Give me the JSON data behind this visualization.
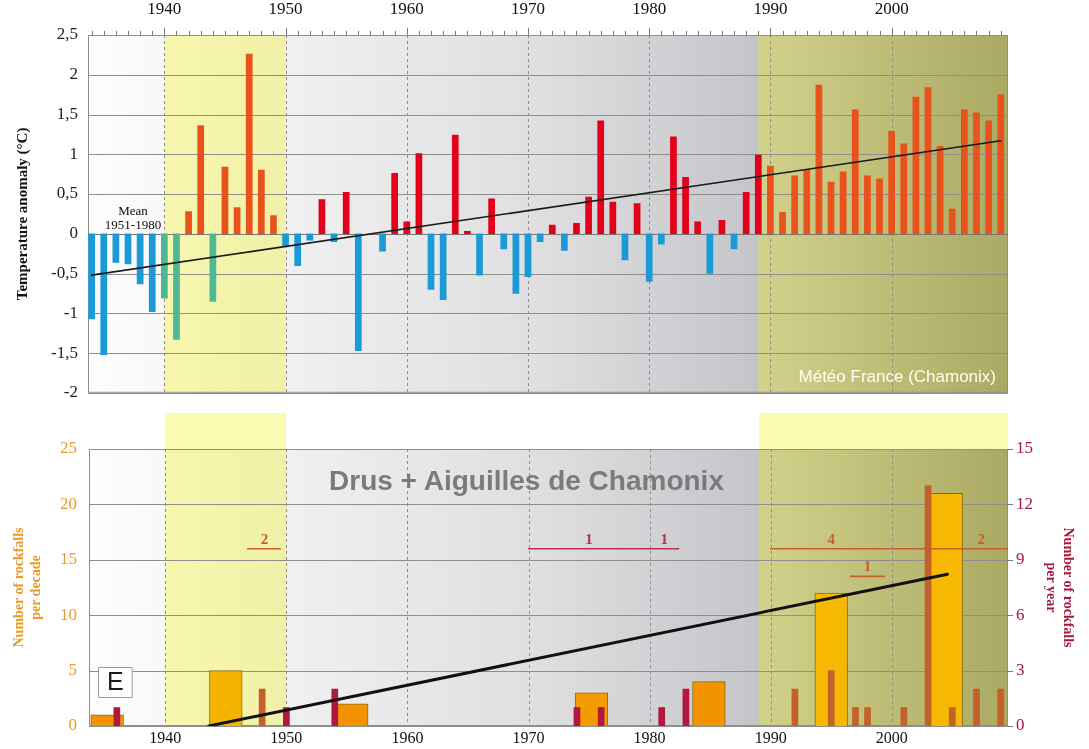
{
  "chart_data": [
    {
      "type": "bar",
      "ylabel": "Temperature anomaly (°C)",
      "x": [
        1934,
        1935,
        1936,
        1937,
        1938,
        1939,
        1940,
        1941,
        1942,
        1943,
        1944,
        1945,
        1946,
        1947,
        1948,
        1949,
        1950,
        1951,
        1952,
        1953,
        1954,
        1955,
        1956,
        1957,
        1958,
        1959,
        1960,
        1961,
        1962,
        1963,
        1964,
        1965,
        1966,
        1967,
        1968,
        1969,
        1970,
        1971,
        1972,
        1973,
        1974,
        1975,
        1976,
        1977,
        1978,
        1979,
        1980,
        1981,
        1982,
        1983,
        1984,
        1985,
        1986,
        1987,
        1988,
        1989,
        1990,
        1991,
        1992,
        1993,
        1994,
        1995,
        1996,
        1997,
        1998,
        1999,
        2000,
        2001,
        2002,
        2003,
        2004,
        2005,
        2006,
        2007,
        2008,
        2009
      ],
      "xlim": [
        1933.7,
        2009.6
      ],
      "xticks": [
        {
          "value": 1934,
          "label": null
        },
        {
          "value": 1935,
          "label": null
        },
        {
          "value": 1936,
          "label": null
        },
        {
          "value": 1937,
          "label": null
        },
        {
          "value": 1938,
          "label": null
        },
        {
          "value": 1939,
          "label": null
        },
        1940,
        {
          "value": 1941,
          "label": null
        },
        {
          "value": 1942,
          "label": null
        },
        {
          "value": 1943,
          "label": null
        },
        {
          "value": 1944,
          "label": null
        },
        {
          "value": 1945,
          "label": null
        },
        {
          "value": 1946,
          "label": null
        },
        {
          "value": 1947,
          "label": null
        },
        {
          "value": 1948,
          "label": null
        },
        {
          "value": 1949,
          "label": null
        },
        1950,
        {
          "value": 1951,
          "label": null
        },
        {
          "value": 1952,
          "label": null
        },
        {
          "value": 1953,
          "label": null
        },
        {
          "value": 1954,
          "label": null
        },
        {
          "value": 1955,
          "label": null
        },
        {
          "value": 1956,
          "label": null
        },
        {
          "value": 1957,
          "label": null
        },
        {
          "value": 1958,
          "label": null
        },
        {
          "value": 1959,
          "label": null
        },
        1960,
        {
          "value": 1961,
          "label": null
        },
        {
          "value": 1962,
          "label": null
        },
        {
          "value": 1963,
          "label": null
        },
        {
          "value": 1964,
          "label": null
        },
        {
          "value": 1965,
          "label": null
        },
        {
          "value": 1966,
          "label": null
        },
        {
          "value": 1967,
          "label": null
        },
        {
          "value": 1968,
          "label": null
        },
        {
          "value": 1969,
          "label": null
        },
        1970,
        {
          "value": 1971,
          "label": null
        },
        {
          "value": 1972,
          "label": null
        },
        {
          "value": 1973,
          "label": null
        },
        {
          "value": 1974,
          "label": null
        },
        {
          "value": 1975,
          "label": null
        },
        {
          "value": 1976,
          "label": null
        },
        {
          "value": 1977,
          "label": null
        },
        {
          "value": 1978,
          "label": null
        },
        {
          "value": 1979,
          "label": null
        },
        1980,
        {
          "value": 1981,
          "label": null
        },
        {
          "value": 1982,
          "label": null
        },
        {
          "value": 1983,
          "label": null
        },
        {
          "value": 1984,
          "label": null
        },
        {
          "value": 1985,
          "label": null
        },
        {
          "value": 1986,
          "label": null
        },
        {
          "value": 1987,
          "label": null
        },
        {
          "value": 1988,
          "label": null
        },
        {
          "value": 1989,
          "label": null
        },
        1990,
        {
          "value": 1991,
          "label": null
        },
        {
          "value": 1992,
          "label": null
        },
        {
          "value": 1993,
          "label": null
        },
        {
          "value": 1994,
          "label": null
        },
        {
          "value": 1995,
          "label": null
        },
        {
          "value": 1996,
          "label": null
        },
        {
          "value": 1997,
          "label": null
        },
        {
          "value": 1998,
          "label": null
        },
        {
          "value": 1999,
          "label": null
        },
        2000,
        {
          "value": 2001,
          "label": null
        },
        {
          "value": 2002,
          "label": null
        },
        {
          "value": 2003,
          "label": null
        },
        {
          "value": 2004,
          "label": null
        },
        {
          "value": 2005,
          "label": null
        },
        {
          "value": 2006,
          "label": null
        },
        {
          "value": 2007,
          "label": null
        },
        {
          "value": 2008,
          "label": null
        },
        {
          "value": 2009,
          "label": null
        }
      ],
      "ylim": [
        -2,
        2.5
      ],
      "yticks": [
        -2,
        {
          "value": -1.5,
          "label": "-1,5"
        },
        -1,
        {
          "value": -0.5,
          "label": "-0,5"
        },
        0,
        {
          "value": 0.5,
          "label": "0,5"
        },
        1,
        {
          "value": 1.5,
          "label": "1,5"
        },
        2,
        {
          "value": 2.5,
          "label": "2,5"
        }
      ],
      "series": [
        {
          "values": [
            -1.07,
            -1.52,
            -0.36,
            -0.38,
            -0.63,
            -0.98,
            -0.81,
            -1.33,
            0.28,
            1.36,
            -0.85,
            0.84,
            0.33,
            2.26,
            0.8,
            0.23,
            -0.16,
            -0.4,
            -0.08,
            0.43,
            -0.1,
            0.52,
            -1.47,
            null,
            -0.22,
            0.76,
            0.15,
            1.01,
            -0.7,
            -0.83,
            1.24,
            0.03,
            -0.52,
            0.44,
            -0.19,
            -0.75,
            -0.54,
            -0.1,
            0.11,
            -0.21,
            0.13,
            0.46,
            1.42,
            0.4,
            -0.33,
            0.38,
            -0.6,
            -0.13,
            1.22,
            0.71,
            0.15,
            -0.5,
            0.17,
            -0.19,
            0.52,
            0.99,
            0.85,
            0.27,
            0.73,
            0.81,
            1.87,
            0.65,
            0.78,
            1.56,
            0.73,
            0.69,
            1.29,
            1.13,
            1.72,
            1.84,
            1.1,
            0.31,
            1.56,
            1.52,
            1.42,
            1.75
          ],
          "colors": [
            "#1a9bd7",
            "#1a9bd7",
            "#1a9bd7",
            "#1a9bd7",
            "#1a9bd7",
            "#1a9bd7",
            "#4cb896",
            "#4cb896",
            "#e8521c",
            "#e8521c",
            "#4cb896",
            "#e8521c",
            "#e8521c",
            "#e8521c",
            "#e8521c",
            "#e8521c",
            "#1a9bd7",
            "#1a9bd7",
            "#1a9bd7",
            "#e2001a",
            "#1a9bd7",
            "#e2001a",
            "#1a9bd7",
            "#1a9bd7",
            "#1a9bd7",
            "#e2001a",
            "#e2001a",
            "#e2001a",
            "#1a9bd7",
            "#1a9bd7",
            "#e2001a",
            "#e2001a",
            "#1a9bd7",
            "#e2001a",
            "#1a9bd7",
            "#1a9bd7",
            "#1a9bd7",
            "#1a9bd7",
            "#e2001a",
            "#1a9bd7",
            "#e2001a",
            "#e2001a",
            "#e2001a",
            "#e2001a",
            "#1a9bd7",
            "#e2001a",
            "#1a9bd7",
            "#1a9bd7",
            "#e2001a",
            "#e2001a",
            "#e2001a",
            "#1a9bd7",
            "#e2001a",
            "#1a9bd7",
            "#e2001a",
            "#e2001a",
            "#e8521c",
            "#e8521c",
            "#e8521c",
            "#e8521c",
            "#e8521c",
            "#e8521c",
            "#e8521c",
            "#e8521c",
            "#e8521c",
            "#e8521c",
            "#e8521c",
            "#e8521c",
            "#e8521c",
            "#e8521c",
            "#e8521c",
            "#e8521c",
            "#e8521c",
            "#e8521c",
            "#e8521c",
            "#e8521c"
          ]
        },
        {
          "type": "line",
          "x": [
            1934,
            2009
          ],
          "values": [
            -0.52,
            1.17
          ],
          "color": "#1a1a1a"
        }
      ],
      "ref_lines": [
        {
          "axis": "y",
          "value": 0,
          "label": "Mean\n1951-1980"
        }
      ],
      "bands": [
        {
          "axis": "x",
          "from": 1940,
          "to": 1950,
          "color": "#f5f200"
        },
        {
          "axis": "x",
          "from": 1989,
          "to": 2009.6,
          "color": "#f5f200"
        }
      ],
      "annotations": [
        "Météo France (Chamonix)"
      ],
      "grid": true
    },
    {
      "type": "bar",
      "title": "Drus + Aiguilles de Chamonix",
      "ylabel": "Number of rockfalls\nper decade",
      "y2label": "Number of rockfalls\nper year",
      "xlim": [
        1933.7,
        2009.6
      ],
      "xticks": [
        1940,
        1950,
        1960,
        1970,
        1980,
        1990,
        2000
      ],
      "ylim": [
        0,
        25
      ],
      "yticks": [
        0,
        5,
        10,
        15,
        20,
        25
      ],
      "y2lim": [
        0,
        15
      ],
      "y2ticks": [
        0,
        3,
        6,
        9,
        12,
        15
      ],
      "series": [
        {
          "x": [
            1935.2,
            1945,
            1955.4,
            1975.2,
            1984.9,
            1995,
            2004.5
          ],
          "values": [
            1,
            5,
            2,
            3,
            4,
            12,
            21
          ],
          "colors": [
            "#f29400",
            "#f5b400",
            "#f29400",
            "#f39c00",
            "#f29400",
            "#f6b800",
            "#f6b800"
          ]
        },
        {
          "axis": "y2",
          "x": [
            1936,
            1948,
            1950,
            1954,
            1974,
            1976,
            1981,
            1983,
            1992,
            1995,
            1997,
            1998,
            2001,
            2003,
            2005,
            2007,
            2009
          ],
          "values": [
            1,
            2,
            1,
            2,
            1,
            1,
            1,
            2,
            2,
            3,
            1,
            1,
            1,
            13,
            1,
            2,
            2
          ],
          "colors": [
            "#b2173d",
            "#c4612b",
            "#b2173d",
            "#b2173d",
            "#b2173d",
            "#b2173d",
            "#b2173d",
            "#b2173d",
            "#c4612b",
            "#c4612b",
            "#c4612b",
            "#c4612b",
            "#c4612b",
            "#c4612b",
            "#c4612b",
            "#c4612b",
            "#c4612b"
          ]
        },
        {
          "type": "line",
          "x": [
            1943.6,
            2004.6
          ],
          "values": [
            0,
            13.7
          ],
          "color": "#111111"
        },
        {
          "type": "line",
          "x": [
            1946.8,
            1949.5
          ],
          "values": [
            16,
            16
          ],
          "color": "#c4612b"
        },
        {
          "type": "line",
          "x": [
            1970,
            1980,
            1982.4
          ],
          "values": [
            16,
            16,
            16
          ],
          "color": "#b8324e"
        },
        {
          "type": "line",
          "x": [
            1990,
            2000,
            2009.6
          ],
          "values": [
            16,
            16,
            16
          ],
          "color": "#c4612b"
        },
        {
          "type": "line",
          "x": [
            1996.6,
            1999.4
          ],
          "values": [
            13.5,
            13.5
          ],
          "color": "#c4612b"
        }
      ],
      "bands": [
        {
          "axis": "x",
          "from": 1940,
          "to": 1950,
          "color": "#f5f200"
        },
        {
          "axis": "x",
          "from": 1989,
          "to": 2009.6,
          "color": "#f5f200"
        }
      ],
      "annotations": [
        "E",
        {
          "text": "2",
          "x": 1948.2,
          "y": 16
        },
        {
          "text": "1",
          "x": 1975,
          "y": 16
        },
        {
          "text": "1",
          "x": 1981.2,
          "y": 16
        },
        {
          "text": "4",
          "x": 1995,
          "y": 16
        },
        {
          "text": "1",
          "x": 1998,
          "y": 13.5
        },
        {
          "text": "2",
          "x": 2007.4,
          "y": 16
        }
      ],
      "grid": true
    }
  ]
}
